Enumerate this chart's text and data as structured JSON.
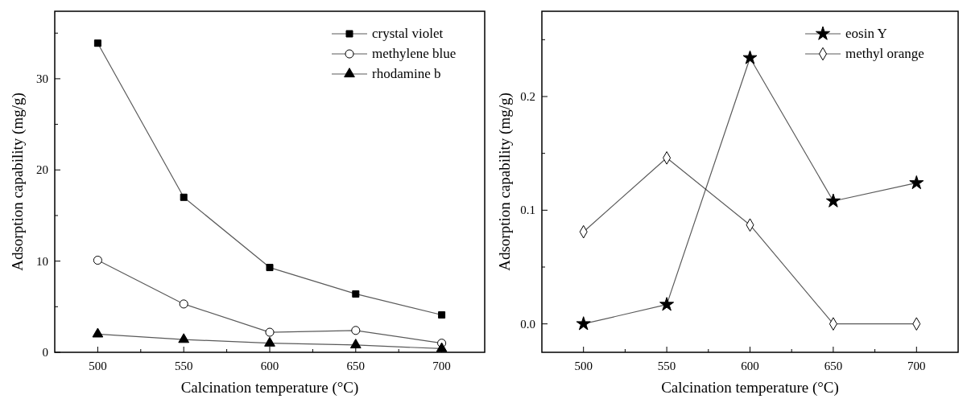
{
  "chart_data": [
    {
      "type": "line",
      "xlabel": "Calcination temperature (°C)",
      "ylabel": "Adsorption capability (mg/g)",
      "x": [
        500,
        550,
        600,
        650,
        700
      ],
      "xlim": [
        475,
        725
      ],
      "xticks": [
        500,
        {
          "value": 525,
          "label": null
        },
        550,
        {
          "value": 575,
          "label": null
        },
        600,
        {
          "value": 625,
          "label": null
        },
        650,
        {
          "value": 675,
          "label": null
        },
        700
      ],
      "ylim": [
        0,
        37.4
      ],
      "yticks": [
        0,
        {
          "value": 5,
          "label": null
        },
        10,
        {
          "value": 15,
          "label": null
        },
        20,
        {
          "value": 25,
          "label": null
        },
        30,
        {
          "value": 35,
          "label": null
        }
      ],
      "legend": "top right",
      "grid": false,
      "line_style": "solid",
      "series": [
        {
          "name": "crystal violet",
          "color": "#000000",
          "marker": "square",
          "values": [
            33.9,
            17.0,
            9.3,
            6.4,
            4.1
          ]
        },
        {
          "name": "methylene blue",
          "color": "#000000",
          "marker": "circle",
          "values": [
            10.1,
            5.3,
            2.2,
            2.4,
            1.0
          ]
        },
        {
          "name": "rhodamine b",
          "color": "#000000",
          "marker": "triangle",
          "values": [
            2.0,
            1.4,
            1.0,
            0.8,
            0.4
          ]
        }
      ]
    },
    {
      "type": "line",
      "xlabel": "Calcination temperature (°C)",
      "ylabel": "Adsorption capability (mg/g)",
      "x": [
        500,
        550,
        600,
        650,
        700
      ],
      "xlim": [
        475,
        725
      ],
      "xticks": [
        500,
        {
          "value": 525,
          "label": null
        },
        550,
        {
          "value": 575,
          "label": null
        },
        600,
        {
          "value": 625,
          "label": null
        },
        650,
        {
          "value": 675,
          "label": null
        },
        700
      ],
      "ylim": [
        -0.025,
        0.275
      ],
      "yticks": [
        {
          "value": 0,
          "label": "0.0"
        },
        {
          "value": 0.05,
          "label": null
        },
        0.1,
        {
          "value": 0.15,
          "label": null
        },
        0.2,
        {
          "value": 0.25,
          "label": null
        }
      ],
      "legend": "top right",
      "grid": false,
      "line_style": "solid",
      "series": [
        {
          "name": "eosin Y",
          "color": "#000000",
          "marker": "star",
          "values": [
            0.0,
            0.017,
            0.234,
            0.108,
            0.124
          ]
        },
        {
          "name": "methyl orange",
          "color": "#000000",
          "marker": "diamond",
          "values": [
            0.081,
            0.146,
            0.087,
            0.0,
            0.0
          ]
        }
      ]
    }
  ]
}
